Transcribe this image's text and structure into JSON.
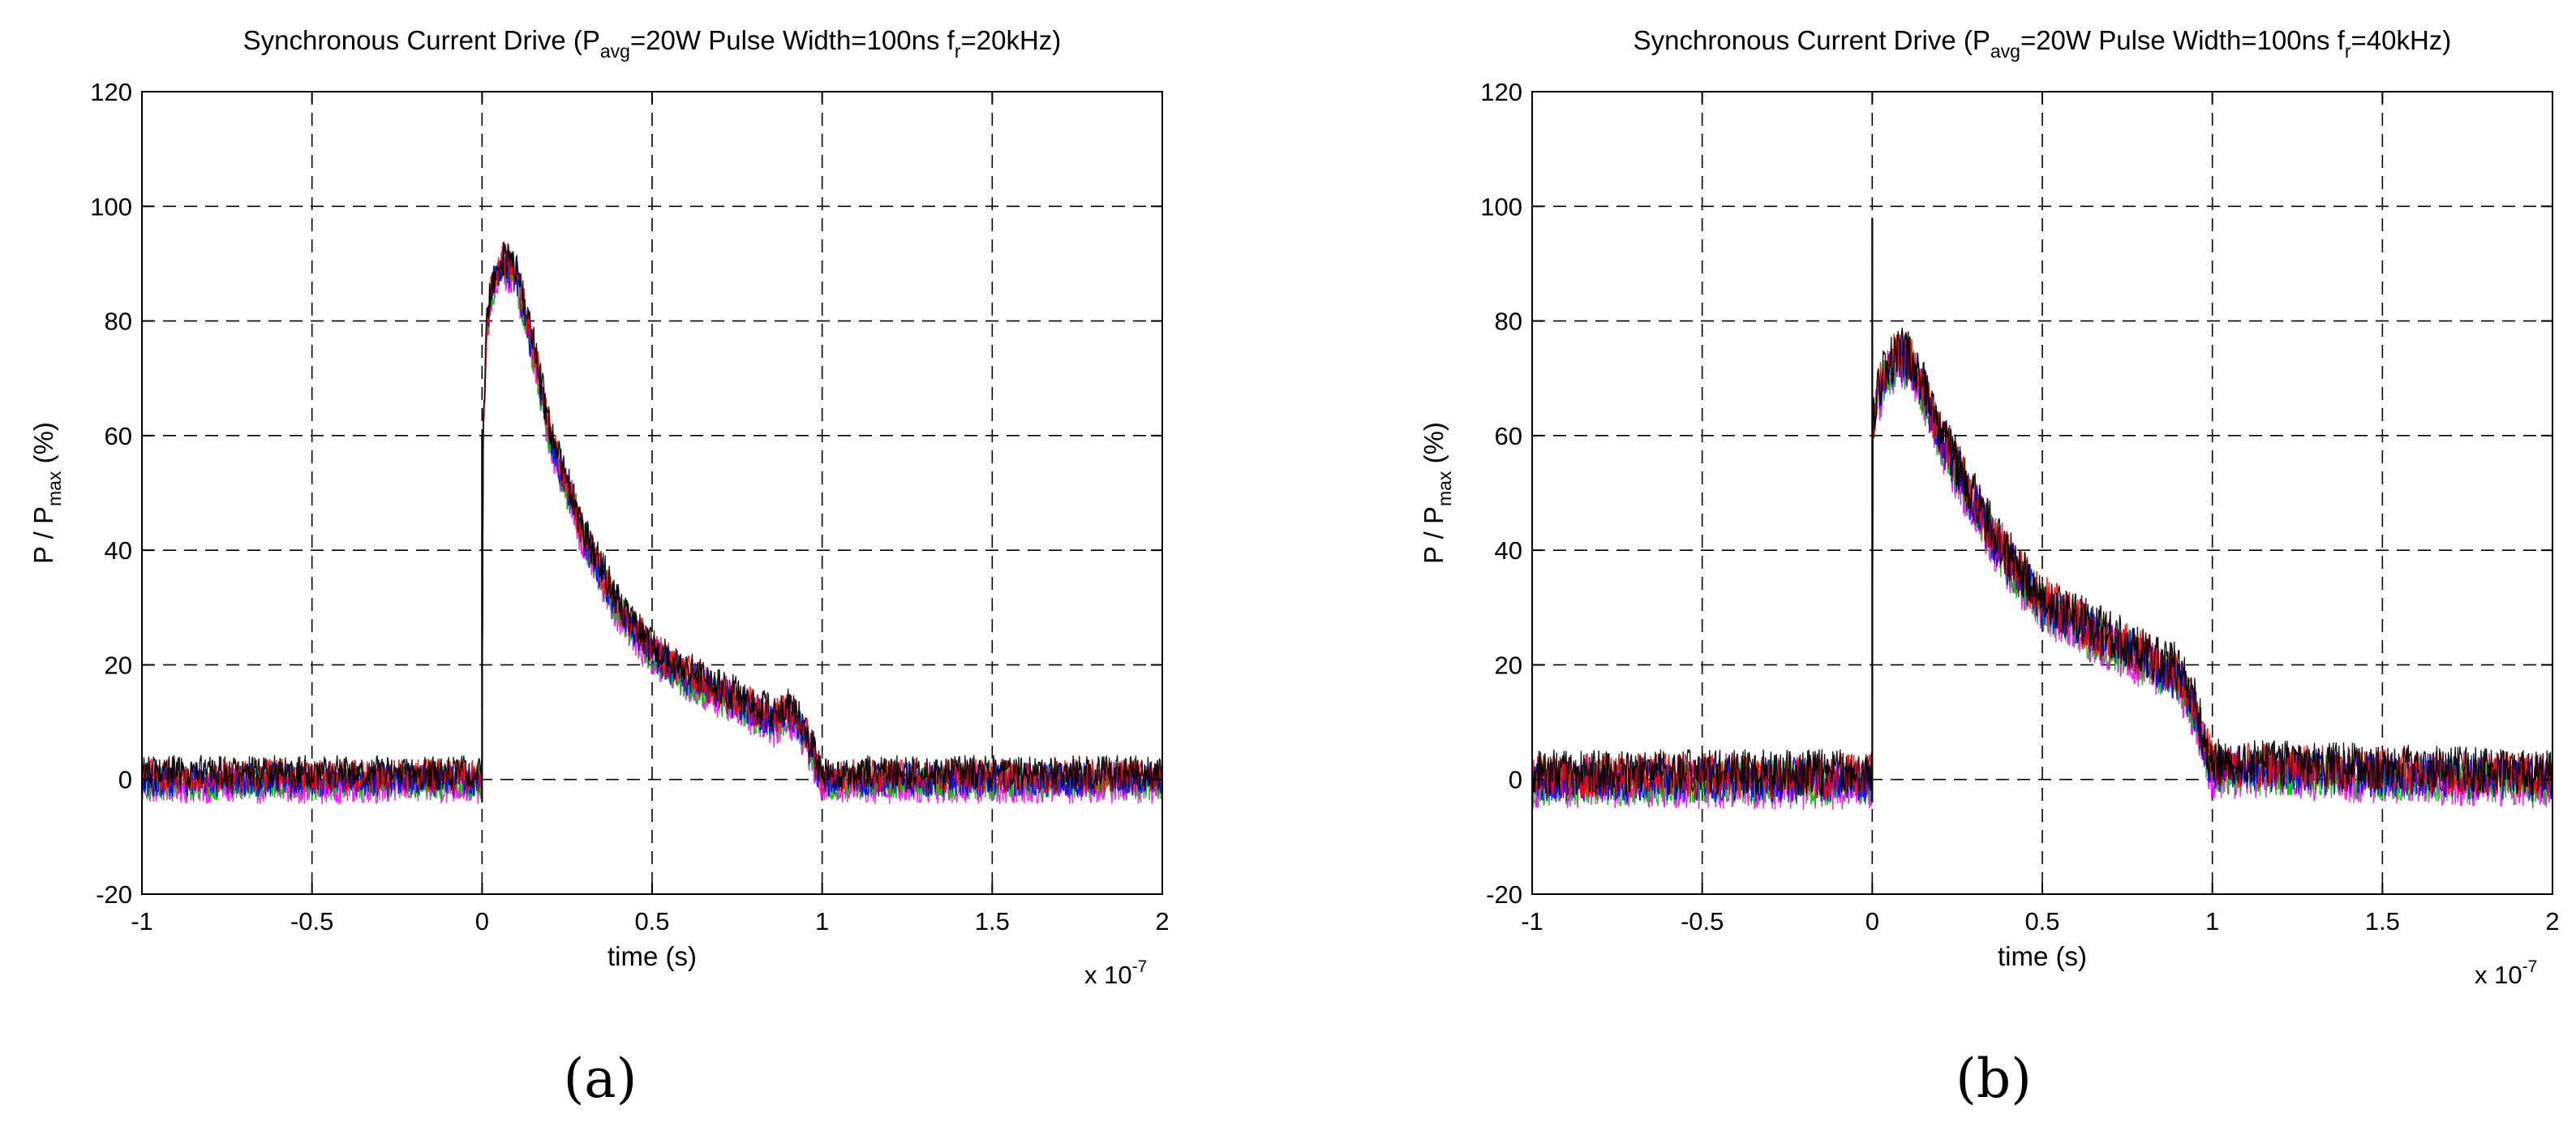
{
  "chart_data": [
    {
      "id": "a",
      "panel_label": "(a)",
      "type": "line",
      "title_prefix": "Synchronous Current Drive (P",
      "title_sub1": "avg",
      "title_mid": "=20W Pulse Width=100ns f",
      "title_sub2": "r",
      "title_suffix": "=20kHz)",
      "xlabel": "time (s)",
      "ylabel_prefix": "P / P",
      "ylabel_sub": "max",
      "ylabel_suffix": " (%)",
      "x_multiplier_base": "x 10",
      "x_multiplier_exp": "-7",
      "xlim": [
        -1,
        2
      ],
      "ylim": [
        -20,
        120
      ],
      "xticks": [
        -1,
        -0.5,
        0,
        0.5,
        1,
        1.5,
        2
      ],
      "xtick_labels": [
        "-1",
        "-0.5",
        "0",
        "0.5",
        "1",
        "1.5",
        "2"
      ],
      "yticks": [
        -20,
        0,
        20,
        40,
        60,
        80,
        100,
        120
      ],
      "ytick_labels": [
        "-20",
        "0",
        "20",
        "40",
        "60",
        "80",
        "100",
        "120"
      ],
      "grid": true,
      "series_colors": [
        "#ff00ff",
        "#00c000",
        "#0000ff",
        "#ff0000",
        "#000000"
      ],
      "envelope": {
        "x": [
          -1,
          0,
          0.003,
          0.015,
          0.03,
          0.06,
          0.1,
          0.15,
          0.2,
          0.3,
          0.4,
          0.5,
          0.6,
          0.7,
          0.8,
          0.86,
          0.9,
          0.95,
          0.98,
          1.0,
          1.5,
          2.0
        ],
        "y": [
          0,
          0,
          60,
          80,
          86,
          90,
          88,
          75,
          60,
          42,
          30,
          22,
          18,
          15,
          12,
          10,
          12,
          8,
          3,
          0,
          0,
          0
        ]
      },
      "noise_level": 3
    },
    {
      "id": "b",
      "panel_label": "(b)",
      "type": "line",
      "title_prefix": "Synchronous Current Drive (P",
      "title_sub1": "avg",
      "title_mid": "=20W Pulse Width=100ns f",
      "title_sub2": "r",
      "title_suffix": "=40kHz)",
      "xlabel": "time (s)",
      "ylabel_prefix": "P / P",
      "ylabel_sub": "max",
      "ylabel_suffix": " (%)",
      "x_multiplier_base": "x 10",
      "x_multiplier_exp": "-7",
      "xlim": [
        -1,
        2
      ],
      "ylim": [
        -20,
        120
      ],
      "xticks": [
        -1,
        -0.5,
        0,
        0.5,
        1,
        1.5,
        2
      ],
      "xtick_labels": [
        "-1",
        "-0.5",
        "0",
        "0.5",
        "1",
        "1.5",
        "2"
      ],
      "yticks": [
        -20,
        0,
        20,
        40,
        60,
        80,
        100,
        120
      ],
      "ytick_labels": [
        "-20",
        "0",
        "20",
        "40",
        "60",
        "80",
        "100",
        "120"
      ],
      "grid": true,
      "series_colors": [
        "#ff00ff",
        "#00c000",
        "#0000ff",
        "#ff0000",
        "#000000"
      ],
      "envelope": {
        "x": [
          -1,
          0,
          0.002,
          0.02,
          0.05,
          0.08,
          0.12,
          0.2,
          0.3,
          0.4,
          0.5,
          0.6,
          0.7,
          0.8,
          0.9,
          0.95,
          0.98,
          1.0,
          1.5,
          2.0
        ],
        "y": [
          0,
          0,
          62,
          68,
          72,
          74,
          72,
          60,
          48,
          38,
          31,
          27,
          24,
          21,
          18,
          12,
          5,
          2,
          1,
          0
        ]
      },
      "noise_level": 4
    }
  ]
}
